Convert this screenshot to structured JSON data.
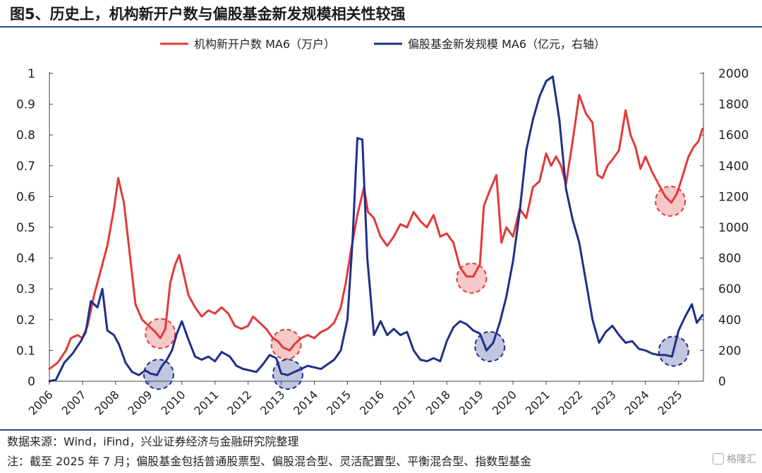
{
  "header": {
    "title": "图5、历史上，机构新开户数与偏股基金新发规模相关性较强"
  },
  "footer": {
    "source": "数据来源：Wind，iFind，兴业证券经济与金融研究院整理",
    "note": "注：截至 2025 年 7 月；偏股基金包括普通股票型、偏股混合型、灵活配置型、平衡混合型、指数型基金",
    "watermark": "格隆汇"
  },
  "chart_data": {
    "type": "line",
    "legend_position": "top-center",
    "grid": false,
    "x_ticks": [
      "2006",
      "2007",
      "2008",
      "2009",
      "2010",
      "2011",
      "2012",
      "2013",
      "2014",
      "2015",
      "2016",
      "2017",
      "2018",
      "2019",
      "2020",
      "2021",
      "2022",
      "2023",
      "2024",
      "2025"
    ],
    "xlim": [
      2006.0,
      2025.75
    ],
    "y_left": {
      "lim": [
        0,
        1
      ],
      "ticks": [
        "0",
        "0.1",
        "0.2",
        "0.3",
        "0.4",
        "0.5",
        "0.6",
        "0.7",
        "0.8",
        "0.9",
        "1"
      ]
    },
    "y_right": {
      "lim": [
        0,
        2000
      ],
      "ticks": [
        "0",
        "200",
        "400",
        "600",
        "800",
        "1000",
        "1200",
        "1400",
        "1600",
        "1800",
        "2000"
      ]
    },
    "series": [
      {
        "name": "机构新开户数 MA6（万户）",
        "color": "#e03a3a",
        "axis": "left",
        "points": [
          [
            2006.0,
            0.04
          ],
          [
            2006.25,
            0.06
          ],
          [
            2006.5,
            0.1
          ],
          [
            2006.65,
            0.14
          ],
          [
            2006.85,
            0.15
          ],
          [
            2007.0,
            0.14
          ],
          [
            2007.15,
            0.18
          ],
          [
            2007.35,
            0.28
          ],
          [
            2007.55,
            0.36
          ],
          [
            2007.75,
            0.44
          ],
          [
            2007.95,
            0.56
          ],
          [
            2008.08,
            0.66
          ],
          [
            2008.25,
            0.58
          ],
          [
            2008.4,
            0.44
          ],
          [
            2008.6,
            0.25
          ],
          [
            2008.8,
            0.2
          ],
          [
            2009.0,
            0.18
          ],
          [
            2009.2,
            0.16
          ],
          [
            2009.35,
            0.14
          ],
          [
            2009.5,
            0.17
          ],
          [
            2009.65,
            0.32
          ],
          [
            2009.8,
            0.38
          ],
          [
            2009.92,
            0.41
          ],
          [
            2010.05,
            0.35
          ],
          [
            2010.2,
            0.28
          ],
          [
            2010.4,
            0.24
          ],
          [
            2010.6,
            0.21
          ],
          [
            2010.8,
            0.23
          ],
          [
            2011.0,
            0.22
          ],
          [
            2011.2,
            0.24
          ],
          [
            2011.4,
            0.22
          ],
          [
            2011.6,
            0.18
          ],
          [
            2011.8,
            0.17
          ],
          [
            2012.0,
            0.18
          ],
          [
            2012.15,
            0.21
          ],
          [
            2012.35,
            0.19
          ],
          [
            2012.55,
            0.17
          ],
          [
            2012.75,
            0.14
          ],
          [
            2012.9,
            0.13
          ],
          [
            2013.05,
            0.11
          ],
          [
            2013.25,
            0.1
          ],
          [
            2013.4,
            0.12
          ],
          [
            2013.6,
            0.14
          ],
          [
            2013.8,
            0.15
          ],
          [
            2014.0,
            0.14
          ],
          [
            2014.2,
            0.16
          ],
          [
            2014.4,
            0.17
          ],
          [
            2014.6,
            0.19
          ],
          [
            2014.8,
            0.24
          ],
          [
            2014.95,
            0.32
          ],
          [
            2015.1,
            0.42
          ],
          [
            2015.3,
            0.54
          ],
          [
            2015.5,
            0.63
          ],
          [
            2015.62,
            0.55
          ],
          [
            2015.8,
            0.53
          ],
          [
            2016.0,
            0.47
          ],
          [
            2016.2,
            0.44
          ],
          [
            2016.4,
            0.47
          ],
          [
            2016.6,
            0.51
          ],
          [
            2016.8,
            0.5
          ],
          [
            2017.0,
            0.55
          ],
          [
            2017.2,
            0.52
          ],
          [
            2017.4,
            0.5
          ],
          [
            2017.6,
            0.54
          ],
          [
            2017.8,
            0.47
          ],
          [
            2018.0,
            0.48
          ],
          [
            2018.2,
            0.45
          ],
          [
            2018.4,
            0.37
          ],
          [
            2018.6,
            0.34
          ],
          [
            2018.8,
            0.34
          ],
          [
            2019.0,
            0.38
          ],
          [
            2019.12,
            0.57
          ],
          [
            2019.3,
            0.62
          ],
          [
            2019.5,
            0.67
          ],
          [
            2019.65,
            0.45
          ],
          [
            2019.8,
            0.5
          ],
          [
            2020.0,
            0.47
          ],
          [
            2020.2,
            0.56
          ],
          [
            2020.4,
            0.53
          ],
          [
            2020.6,
            0.63
          ],
          [
            2020.8,
            0.65
          ],
          [
            2021.0,
            0.74
          ],
          [
            2021.15,
            0.7
          ],
          [
            2021.3,
            0.73
          ],
          [
            2021.45,
            0.7
          ],
          [
            2021.6,
            0.64
          ],
          [
            2021.8,
            0.78
          ],
          [
            2022.0,
            0.93
          ],
          [
            2022.2,
            0.87
          ],
          [
            2022.4,
            0.84
          ],
          [
            2022.55,
            0.67
          ],
          [
            2022.7,
            0.66
          ],
          [
            2022.85,
            0.7
          ],
          [
            2023.0,
            0.72
          ],
          [
            2023.2,
            0.75
          ],
          [
            2023.4,
            0.88
          ],
          [
            2023.55,
            0.8
          ],
          [
            2023.7,
            0.76
          ],
          [
            2023.85,
            0.69
          ],
          [
            2024.0,
            0.73
          ],
          [
            2024.2,
            0.68
          ],
          [
            2024.4,
            0.64
          ],
          [
            2024.6,
            0.6
          ],
          [
            2024.78,
            0.58
          ],
          [
            2024.95,
            0.61
          ],
          [
            2025.1,
            0.66
          ],
          [
            2025.3,
            0.73
          ],
          [
            2025.45,
            0.76
          ],
          [
            2025.6,
            0.78
          ],
          [
            2025.72,
            0.82
          ]
        ],
        "highlights": [
          [
            2009.35,
            0.155
          ],
          [
            2013.15,
            0.12
          ],
          [
            2018.75,
            0.335
          ],
          [
            2024.75,
            0.585
          ]
        ]
      },
      {
        "name": "偏股基金新发规模 MA6（亿元，右轴）",
        "color": "#1f2f8a",
        "axis": "right",
        "points": [
          [
            2006.0,
            0
          ],
          [
            2006.2,
            10
          ],
          [
            2006.45,
            120
          ],
          [
            2006.7,
            180
          ],
          [
            2006.95,
            260
          ],
          [
            2007.1,
            320
          ],
          [
            2007.25,
            520
          ],
          [
            2007.45,
            480
          ],
          [
            2007.6,
            600
          ],
          [
            2007.75,
            330
          ],
          [
            2007.95,
            300
          ],
          [
            2008.1,
            240
          ],
          [
            2008.3,
            120
          ],
          [
            2008.5,
            60
          ],
          [
            2008.7,
            40
          ],
          [
            2008.9,
            70
          ],
          [
            2009.05,
            50
          ],
          [
            2009.25,
            40
          ],
          [
            2009.4,
            100
          ],
          [
            2009.55,
            140
          ],
          [
            2009.7,
            200
          ],
          [
            2009.85,
            310
          ],
          [
            2010.0,
            390
          ],
          [
            2010.2,
            270
          ],
          [
            2010.4,
            160
          ],
          [
            2010.6,
            140
          ],
          [
            2010.8,
            160
          ],
          [
            2011.0,
            130
          ],
          [
            2011.2,
            190
          ],
          [
            2011.45,
            160
          ],
          [
            2011.65,
            100
          ],
          [
            2011.85,
            80
          ],
          [
            2012.05,
            70
          ],
          [
            2012.25,
            60
          ],
          [
            2012.45,
            110
          ],
          [
            2012.65,
            170
          ],
          [
            2012.85,
            150
          ],
          [
            2013.0,
            50
          ],
          [
            2013.2,
            40
          ],
          [
            2013.4,
            60
          ],
          [
            2013.6,
            80
          ],
          [
            2013.8,
            100
          ],
          [
            2014.0,
            90
          ],
          [
            2014.2,
            80
          ],
          [
            2014.4,
            110
          ],
          [
            2014.6,
            140
          ],
          [
            2014.8,
            200
          ],
          [
            2015.0,
            400
          ],
          [
            2015.15,
            900
          ],
          [
            2015.3,
            1580
          ],
          [
            2015.45,
            1570
          ],
          [
            2015.6,
            800
          ],
          [
            2015.8,
            300
          ],
          [
            2016.0,
            390
          ],
          [
            2016.2,
            300
          ],
          [
            2016.4,
            340
          ],
          [
            2016.6,
            300
          ],
          [
            2016.8,
            320
          ],
          [
            2017.0,
            200
          ],
          [
            2017.2,
            140
          ],
          [
            2017.4,
            130
          ],
          [
            2017.6,
            150
          ],
          [
            2017.8,
            130
          ],
          [
            2018.0,
            260
          ],
          [
            2018.2,
            350
          ],
          [
            2018.4,
            390
          ],
          [
            2018.6,
            370
          ],
          [
            2018.8,
            330
          ],
          [
            2019.0,
            310
          ],
          [
            2019.2,
            200
          ],
          [
            2019.4,
            250
          ],
          [
            2019.6,
            380
          ],
          [
            2019.8,
            550
          ],
          [
            2020.0,
            780
          ],
          [
            2020.2,
            1100
          ],
          [
            2020.4,
            1500
          ],
          [
            2020.6,
            1700
          ],
          [
            2020.8,
            1850
          ],
          [
            2021.0,
            1950
          ],
          [
            2021.2,
            1980
          ],
          [
            2021.4,
            1700
          ],
          [
            2021.6,
            1250
          ],
          [
            2021.8,
            1050
          ],
          [
            2022.0,
            900
          ],
          [
            2022.2,
            650
          ],
          [
            2022.4,
            400
          ],
          [
            2022.6,
            250
          ],
          [
            2022.8,
            320
          ],
          [
            2023.0,
            360
          ],
          [
            2023.2,
            300
          ],
          [
            2023.4,
            250
          ],
          [
            2023.6,
            260
          ],
          [
            2023.8,
            210
          ],
          [
            2024.0,
            200
          ],
          [
            2024.2,
            180
          ],
          [
            2024.4,
            170
          ],
          [
            2024.6,
            170
          ],
          [
            2024.8,
            160
          ],
          [
            2025.0,
            330
          ],
          [
            2025.2,
            420
          ],
          [
            2025.4,
            500
          ],
          [
            2025.55,
            380
          ],
          [
            2025.72,
            430
          ]
        ],
        "highlights": [
          [
            2009.3,
            45
          ],
          [
            2013.2,
            45
          ],
          [
            2019.3,
            225
          ],
          [
            2024.85,
            195
          ]
        ]
      }
    ]
  }
}
